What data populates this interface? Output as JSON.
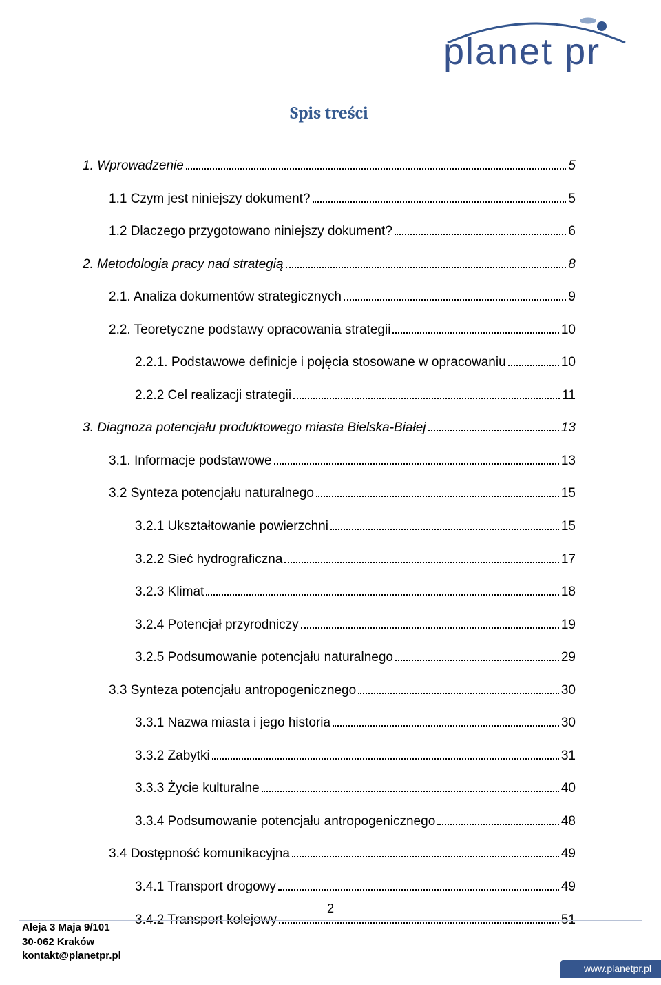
{
  "logo": {
    "text": "planet pr",
    "arc_color": "#33558e",
    "dot_color_light": "#8fa7c9",
    "dot_color_dark": "#33558e"
  },
  "title": "Spis treści",
  "title_color": "#355a90",
  "toc": [
    {
      "label": "1. Wprowadzenie",
      "page": "5",
      "indent": 0,
      "italic": true
    },
    {
      "label": "1.1 Czym jest niniejszy dokument?",
      "page": "5",
      "indent": 1,
      "italic": false
    },
    {
      "label": "1.2 Dlaczego przygotowano niniejszy dokument?",
      "page": "6",
      "indent": 1,
      "italic": false
    },
    {
      "label": "2.   Metodologia pracy nad strategią",
      "page": "8",
      "indent": 0,
      "italic": true
    },
    {
      "label": "2.1. Analiza dokumentów strategicznych",
      "page": "9",
      "indent": 1,
      "italic": false
    },
    {
      "label": "2.2. Teoretyczne podstawy opracowania strategii",
      "page": "10",
      "indent": 1,
      "italic": false
    },
    {
      "label": "2.2.1. Podstawowe definicje i pojęcia stosowane w opracowaniu",
      "page": "10",
      "indent": 2,
      "italic": false
    },
    {
      "label": "2.2.2 Cel realizacji strategii",
      "page": "11",
      "indent": 2,
      "italic": false
    },
    {
      "label": "3. Diagnoza potencjału produktowego miasta Bielska-Białej",
      "page": "13",
      "indent": 0,
      "italic": true
    },
    {
      "label": "3.1. Informacje podstawowe",
      "page": "13",
      "indent": 1,
      "italic": false
    },
    {
      "label": "3.2 Synteza potencjału naturalnego",
      "page": "15",
      "indent": 1,
      "italic": false
    },
    {
      "label": "3.2.1 Ukształtowanie powierzchni",
      "page": "15",
      "indent": 2,
      "italic": false
    },
    {
      "label": "3.2.2 Sieć hydrograficzna",
      "page": "17",
      "indent": 2,
      "italic": false
    },
    {
      "label": "3.2.3 Klimat",
      "page": "18",
      "indent": 2,
      "italic": false
    },
    {
      "label": "3.2.4 Potencjał przyrodniczy",
      "page": "19",
      "indent": 2,
      "italic": false
    },
    {
      "label": "3.2.5 Podsumowanie potencjału naturalnego",
      "page": "29",
      "indent": 2,
      "italic": false
    },
    {
      "label": "3.3 Synteza potencjału antropogenicznego",
      "page": "30",
      "indent": 1,
      "italic": false
    },
    {
      "label": "3.3.1 Nazwa miasta i jego historia",
      "page": "30",
      "indent": 2,
      "italic": false
    },
    {
      "label": "3.3.2 Zabytki",
      "page": "31",
      "indent": 2,
      "italic": false
    },
    {
      "label": "3.3.3 Życie kulturalne",
      "page": "40",
      "indent": 2,
      "italic": false
    },
    {
      "label": "3.3.4 Podsumowanie potencjału antropogenicznego",
      "page": "48",
      "indent": 2,
      "italic": false
    },
    {
      "label": "3.4 Dostępność komunikacyjna",
      "page": "49",
      "indent": 1,
      "italic": false
    },
    {
      "label": "3.4.1 Transport drogowy",
      "page": "49",
      "indent": 2,
      "italic": false
    },
    {
      "label": "3.4.2 Transport kolejowy",
      "page": "51",
      "indent": 2,
      "italic": false
    }
  ],
  "page_number": "2",
  "footer": {
    "address_line1": "Aleja 3 Maja 9/101",
    "address_line2": "30-062 Kraków",
    "address_line3": "kontakt@planetpr.pl",
    "website": "www.planetpr.pl",
    "bar_color": "#35568e"
  }
}
